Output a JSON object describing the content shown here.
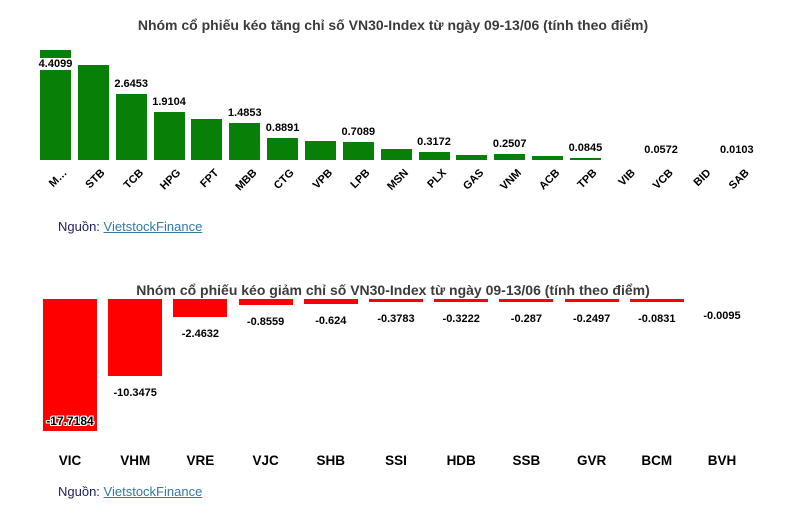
{
  "colors": {
    "gain": "#088008",
    "loss": "#fe0000",
    "title": "#3b3b3b",
    "source_text": "#21215a",
    "link": "#3279a5",
    "background": "#ffffff"
  },
  "source": {
    "label": "Nguồn:",
    "link_text": "VietstockFinance"
  },
  "chart_data": [
    {
      "type": "bar",
      "title": "Nhóm cổ phiếu kéo tăng chỉ số VN30-Index từ ngày 09-13/06 (tính theo điểm)",
      "direction": "up",
      "bar_color": "#088008",
      "xlabel": "",
      "ylabel": "",
      "ylim": [
        0,
        4.6
      ],
      "grid": false,
      "legend": "none",
      "categories": [
        "M…",
        "STB",
        "TCB",
        "HPG",
        "FPT",
        "MBB",
        "CTG",
        "VPB",
        "LPB",
        "MSN",
        "PLX",
        "GAS",
        "VNM",
        "ACB",
        "TPB",
        "VIB",
        "VCB",
        "BID",
        "SAB"
      ],
      "values": [
        4.4099,
        3.8,
        2.6453,
        1.9104,
        1.63,
        1.4853,
        0.8891,
        0.78,
        0.7089,
        0.44,
        0.3172,
        0.2,
        0.2507,
        0.15,
        0.0845,
        0.05,
        0.0572,
        0.03,
        0.0103
      ],
      "data_labels": [
        "4.4099",
        null,
        "2.6453",
        "1.9104",
        null,
        "1.4853",
        "0.8891",
        null,
        "0.7089",
        null,
        "0.3172",
        null,
        "0.2507",
        null,
        "0.0845",
        null,
        "0.0572",
        null,
        "0.0103"
      ]
    },
    {
      "type": "bar",
      "title": "Nhóm cổ phiếu kéo giảm chỉ số VN30-Index từ ngày 09-13/06 (tính theo điểm)",
      "direction": "down",
      "bar_color": "#fe0000",
      "xlabel": "",
      "ylabel": "",
      "ylim": [
        -18.5,
        0
      ],
      "grid": false,
      "legend": "none",
      "categories": [
        "VIC",
        "VHM",
        "VRE",
        "VJC",
        "SHB",
        "SSI",
        "HDB",
        "SSB",
        "GVR",
        "BCM",
        "BVH"
      ],
      "values": [
        -17.7184,
        -10.3475,
        -2.4632,
        -0.8559,
        -0.624,
        -0.3783,
        -0.3222,
        -0.287,
        -0.2497,
        -0.0831,
        -0.0095
      ],
      "data_labels": [
        "-17.7184",
        "-10.3475",
        "-2.4632",
        "-0.8559",
        "-0.624",
        "-0.3783",
        "-0.3222",
        "-0.287",
        "-0.2497",
        "-0.0831",
        "-0.0095"
      ]
    }
  ]
}
